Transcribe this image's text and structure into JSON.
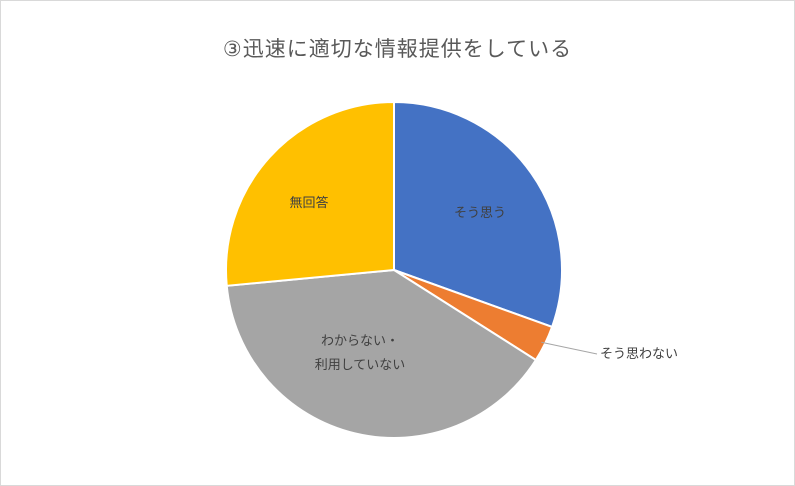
{
  "chart_data": {
    "type": "pie",
    "title": "③迅速に適切な情報提供をしている",
    "slices": [
      {
        "label": "そう思う",
        "value": 30.5,
        "color": "#4472C4"
      },
      {
        "label": "そう思わない",
        "value": 3.5,
        "color": "#ED7D31"
      },
      {
        "label": "わからない・利用していない",
        "label_lines": [
          "わからない・",
          "利用していない"
        ],
        "value": 39.5,
        "color": "#A5A5A5"
      },
      {
        "label": "無回答",
        "value": 26.5,
        "color": "#FFC000"
      }
    ]
  }
}
